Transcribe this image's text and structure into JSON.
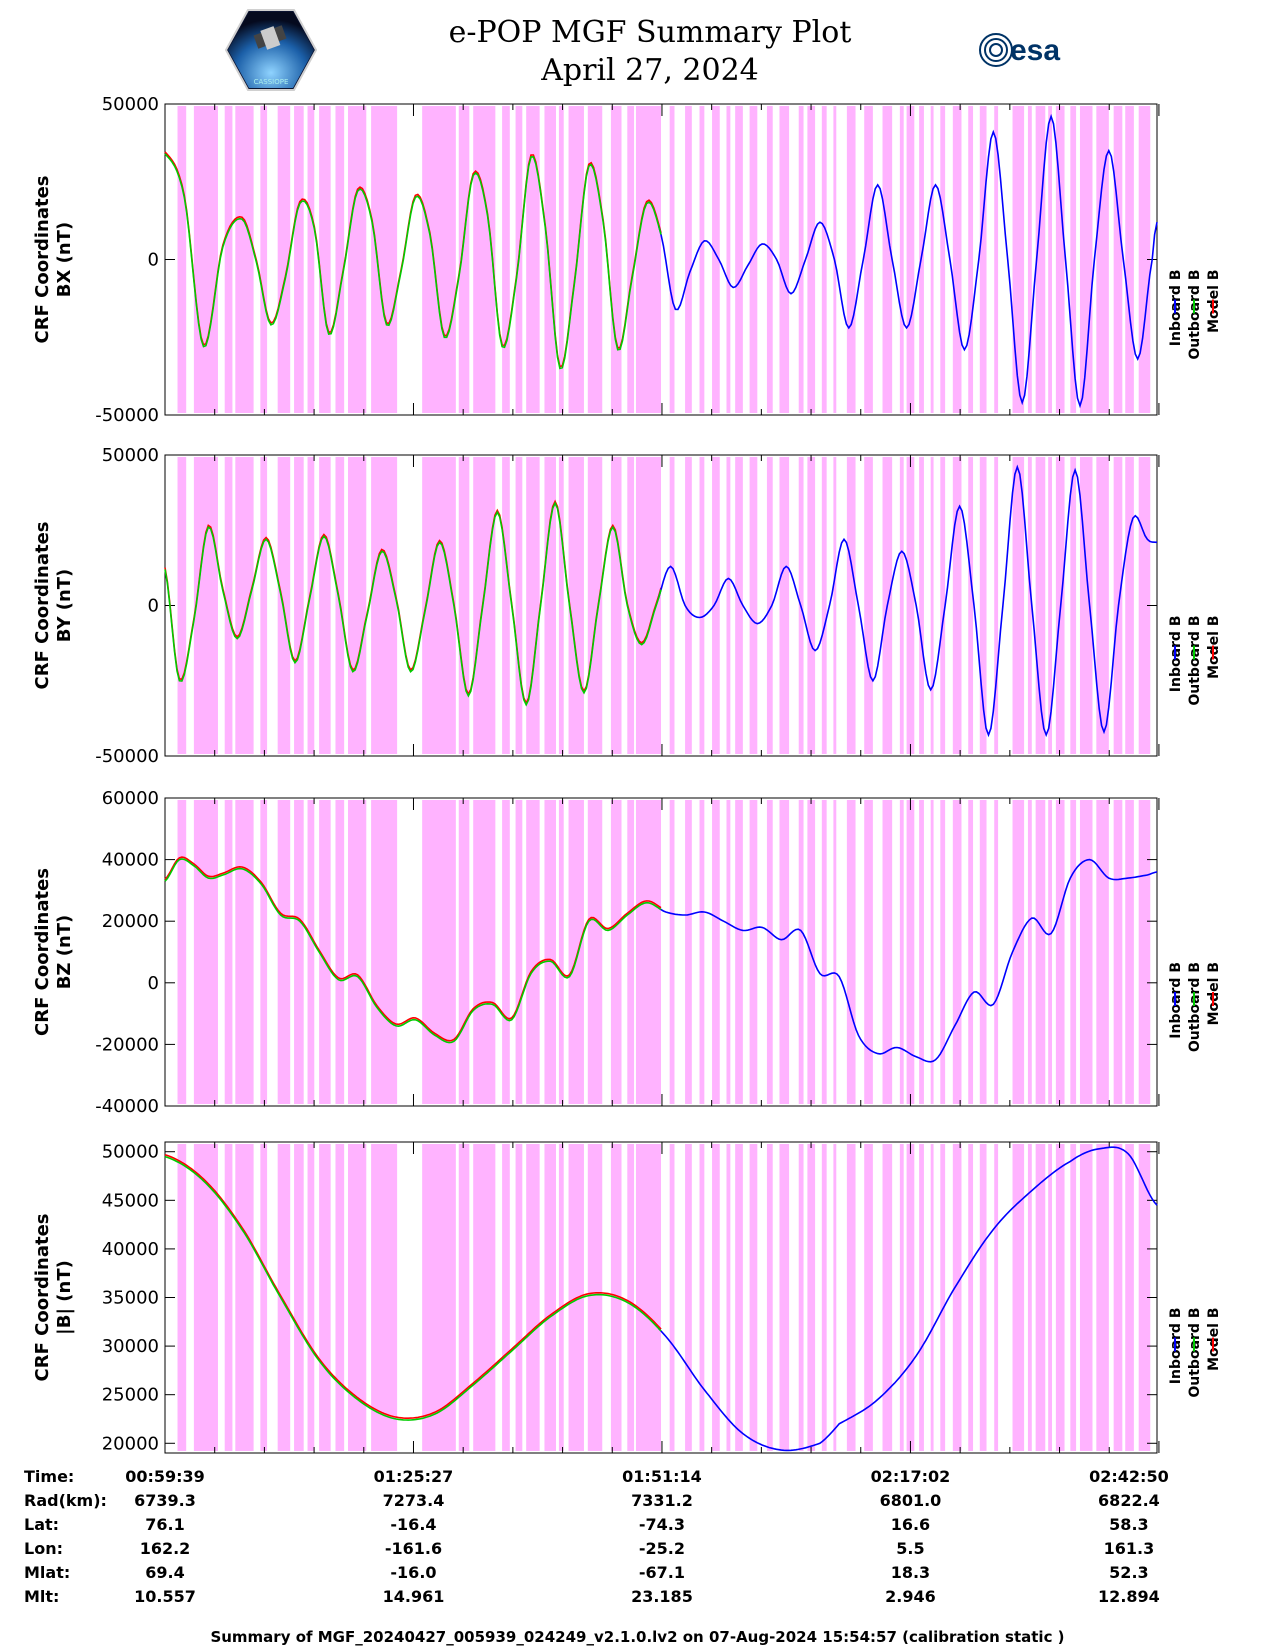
{
  "title": {
    "line1": "e-POP MGF Summary Plot",
    "line2": "April 27, 2024"
  },
  "logos": {
    "left_icon": "cassiope-satellite-logo",
    "left_text": "CASSIOPE",
    "right_icon": "esa-logo",
    "right_text": "esa"
  },
  "colors": {
    "inboard": "#0000ff",
    "outboard": "#00cc00",
    "model": "#ff0000",
    "shade": "#ffb3ff"
  },
  "legend": [
    "Inboard B",
    "Outboard B",
    "Model B"
  ],
  "chart_data": [
    {
      "type": "line",
      "ylabel_line1": "CRF Coordinates",
      "ylabel_line2": "BX (nT)",
      "ylim": [
        -50000,
        50000
      ],
      "yticks": [
        "50000",
        "0",
        "-50000"
      ],
      "ytick_values": [
        50000,
        0,
        -50000
      ],
      "t": [
        0,
        2,
        4,
        6,
        8,
        9.5,
        11,
        12.5,
        14,
        15.5,
        17,
        18.5,
        20,
        21.5,
        23,
        24.5,
        26,
        27.5,
        29,
        30.5,
        32,
        33.5,
        35,
        36.5,
        38,
        39.5,
        41,
        42.5,
        44,
        45.5,
        47,
        48.5,
        50,
        51.5,
        53,
        54.5,
        56,
        57.5,
        59,
        60.5,
        62,
        63.5,
        65,
        66.5,
        68,
        69.5,
        71,
        72.5,
        74,
        75.5,
        77,
        78.5,
        80,
        81.5,
        83,
        84.5,
        86,
        87.5,
        89,
        90.5,
        92,
        93.5,
        95,
        96.5,
        98,
        99.5,
        101,
        102.5,
        103
      ],
      "y": [
        34000,
        20000,
        -28000,
        4000,
        13000,
        -1000,
        -21000,
        -6000,
        18000,
        10000,
        -24000,
        -4000,
        22000,
        12000,
        -21000,
        -4000,
        20000,
        8000,
        -25000,
        -6000,
        27000,
        14000,
        -28000,
        -6000,
        33000,
        10000,
        -35000,
        -8000,
        30000,
        12000,
        -29000,
        -6000,
        18000,
        8000,
        -16000,
        -4000,
        6000,
        0,
        -9000,
        -2000,
        5000,
        0,
        -11000,
        0,
        12000,
        0,
        -22000,
        0,
        24000,
        0,
        -22000,
        0,
        24000,
        0,
        -29000,
        0,
        41000,
        0,
        -46000,
        0,
        46000,
        0,
        -47000,
        0,
        35000,
        0,
        -32000,
        0,
        12000
      ],
      "model_offset_note": "Model B closely overlays measured data"
    },
    {
      "type": "line",
      "ylabel_line1": "CRF Coordinates",
      "ylabel_line2": "BY (nT)",
      "ylim": [
        -50000,
        50000
      ],
      "yticks": [
        "50000",
        "0",
        "-50000"
      ],
      "ytick_values": [
        50000,
        0,
        -50000
      ],
      "t": [
        0,
        1.5,
        3,
        4.5,
        6,
        7.5,
        9,
        10.5,
        12,
        13.5,
        15,
        16.5,
        18,
        19.5,
        21,
        22.5,
        24,
        25.5,
        27,
        28.5,
        30,
        31.5,
        33,
        34.5,
        36,
        37.5,
        39,
        40.5,
        42,
        43.5,
        45,
        46.5,
        48,
        49.5,
        51,
        52.5,
        54,
        55.5,
        57,
        58.5,
        60,
        61.5,
        63,
        64.5,
        66,
        67.5,
        69,
        70.5,
        72,
        73.5,
        75,
        76.5,
        78,
        79.5,
        81,
        82.5,
        84,
        85.5,
        87,
        88.5,
        90,
        91.5,
        93,
        94.5,
        96,
        97.5,
        99,
        100.5,
        102,
        103
      ],
      "y": [
        12000,
        -25000,
        -5000,
        26000,
        5000,
        -11000,
        5000,
        22000,
        4000,
        -19000,
        2000,
        23000,
        3000,
        -22000,
        -3000,
        18000,
        2000,
        -22000,
        -2000,
        21000,
        0,
        -30000,
        0,
        31000,
        0,
        -33000,
        0,
        34000,
        0,
        -29000,
        0,
        26000,
        0,
        -13000,
        0,
        13000,
        0,
        -4000,
        0,
        9000,
        0,
        -6000,
        0,
        13000,
        0,
        -15000,
        0,
        22000,
        0,
        -25000,
        0,
        18000,
        0,
        -28000,
        0,
        33000,
        0,
        -43000,
        0,
        46000,
        0,
        -43000,
        0,
        45000,
        0,
        -42000,
        0,
        29000,
        22000,
        21000
      ],
      "model_offset_note": "Model B closely overlays measured data"
    },
    {
      "type": "line",
      "ylabel_line1": "CRF Coordinates",
      "ylabel_line2": "BZ (nT)",
      "ylim": [
        -40000,
        60000
      ],
      "yticks": [
        "60000",
        "40000",
        "20000",
        "0",
        "-20000",
        "-40000"
      ],
      "ytick_values": [
        60000,
        40000,
        20000,
        0,
        -20000,
        -40000
      ],
      "t": [
        0,
        1.5,
        3,
        4.5,
        6,
        8,
        10,
        12,
        14,
        16,
        18,
        20,
        22,
        24,
        26,
        28,
        30,
        32,
        34,
        36,
        38,
        40,
        42,
        44,
        46,
        48,
        50,
        52,
        54,
        56,
        58,
        60,
        62,
        64,
        66,
        68,
        70,
        72,
        74,
        76,
        78,
        80,
        82,
        84,
        86,
        88,
        90,
        92,
        94,
        96,
        98,
        100,
        102,
        103
      ],
      "y": [
        33000,
        40000,
        38000,
        34000,
        35000,
        37000,
        32000,
        22000,
        20000,
        10000,
        1000,
        2000,
        -8000,
        -14000,
        -12000,
        -17000,
        -19000,
        -9000,
        -7000,
        -12000,
        3000,
        7000,
        2000,
        20000,
        17000,
        22000,
        26000,
        23000,
        22000,
        23000,
        20000,
        17000,
        18000,
        14000,
        17000,
        3000,
        2000,
        -17000,
        -23000,
        -21000,
        -24000,
        -25000,
        -14000,
        -3000,
        -7000,
        10000,
        21000,
        16000,
        34000,
        40000,
        34000,
        34000,
        35000,
        36000
      ],
      "model_offset_note": "Model B closely overlays measured data"
    },
    {
      "type": "line",
      "ylabel_line1": "CRF Coordinates",
      "ylabel_line2": "|B| (nT)",
      "ylim": [
        19000,
        51000
      ],
      "yticks": [
        "50000",
        "45000",
        "40000",
        "35000",
        "30000",
        "25000",
        "20000"
      ],
      "ytick_values": [
        50000,
        45000,
        40000,
        35000,
        30000,
        25000,
        20000
      ],
      "t": [
        0,
        4,
        8,
        12,
        16,
        20,
        24,
        28,
        32,
        36,
        40,
        44,
        48,
        52,
        56,
        60,
        64,
        68,
        70,
        74,
        78,
        82,
        86,
        90,
        94,
        97,
        100,
        103
      ],
      "y": [
        49500,
        47000,
        42000,
        35000,
        28500,
        24500,
        22500,
        23000,
        26000,
        29500,
        33000,
        35200,
        34500,
        31000,
        25500,
        21000,
        19300,
        20000,
        22000,
        24500,
        29000,
        36000,
        42000,
        46000,
        49000,
        50300,
        49800,
        44500
      ],
      "model_offset_note": "Model B closely overlays measured data"
    }
  ],
  "x_axis": {
    "t_range": [
      0,
      103
    ],
    "tick_minutes": [
      0,
      25.8,
      51.6,
      77.4,
      103.2
    ],
    "minor_ticks": 12
  },
  "outboard_end_t": 51.5,
  "shade_segments": [
    [
      1.3,
      2.2
    ],
    [
      3.0,
      5.5
    ],
    [
      6.2,
      7.0
    ],
    [
      7.3,
      9.2
    ],
    [
      9.9,
      10.6
    ],
    [
      11.7,
      13.0
    ],
    [
      13.4,
      14.4
    ],
    [
      14.8,
      15.5
    ],
    [
      16.0,
      17.2
    ],
    [
      17.7,
      18.6
    ],
    [
      19.0,
      20.9
    ],
    [
      21.4,
      24.1
    ],
    [
      26.7,
      30.2
    ],
    [
      30.5,
      31.6
    ],
    [
      32.0,
      34.3
    ],
    [
      35.0,
      35.8
    ],
    [
      36.4,
      37.1
    ],
    [
      37.5,
      38.9
    ],
    [
      39.4,
      40.6
    ],
    [
      40.9,
      41.4
    ],
    [
      41.9,
      43.5
    ],
    [
      43.9,
      45.4
    ],
    [
      46.3,
      47.4
    ],
    [
      48.0,
      48.7
    ],
    [
      48.9,
      51.5
    ],
    [
      52.4,
      52.9
    ],
    [
      54.0,
      54.7
    ],
    [
      55.5,
      56.0
    ],
    [
      56.8,
      57.6
    ],
    [
      58.3,
      58.7
    ],
    [
      59.2,
      60.0
    ],
    [
      60.7,
      61.5
    ],
    [
      62.5,
      63.1
    ],
    [
      63.8,
      64.8
    ],
    [
      65.8,
      66.3
    ],
    [
      66.7,
      67.5
    ],
    [
      68.2,
      68.7
    ],
    [
      69.4,
      69.7
    ],
    [
      70.8,
      71.7
    ],
    [
      72.6,
      73.5
    ],
    [
      74.5,
      75.5
    ],
    [
      76.3,
      76.7
    ],
    [
      77.0,
      77.8
    ],
    [
      78.3,
      78.8
    ],
    [
      79.5,
      79.8
    ],
    [
      80.5,
      81.0
    ],
    [
      81.8,
      82.7
    ],
    [
      83.4,
      83.9
    ],
    [
      84.6,
      85.3
    ],
    [
      86.1,
      86.5
    ],
    [
      88.0,
      89.2
    ],
    [
      89.6,
      90.0
    ],
    [
      90.4,
      91.4
    ],
    [
      91.7,
      92.1
    ],
    [
      92.5,
      93.4
    ],
    [
      94.0,
      94.6
    ],
    [
      95.0,
      96.3
    ],
    [
      96.7,
      98.0
    ],
    [
      98.5,
      99.4
    ],
    [
      99.7,
      100.6
    ],
    [
      101.1,
      102.3
    ]
  ],
  "info_table": {
    "labels": [
      "Time:",
      "Rad(km):",
      "Lat:",
      "Lon:",
      "Mlat:",
      "Mlt:"
    ],
    "columns": [
      [
        "00:59:39",
        "6739.3",
        "76.1",
        "162.2",
        "69.4",
        "10.557"
      ],
      [
        "01:25:27",
        "7273.4",
        "-16.4",
        "-161.6",
        "-16.0",
        "14.961"
      ],
      [
        "01:51:14",
        "7331.2",
        "-74.3",
        "-25.2",
        "-67.1",
        "23.185"
      ],
      [
        "02:17:02",
        "6801.0",
        "16.6",
        "5.5",
        "18.3",
        "2.946"
      ],
      [
        "02:42:50",
        "6822.4",
        "58.3",
        "161.3",
        "52.3",
        "12.894"
      ]
    ]
  },
  "footer": "Summary of MGF_20240427_005939_024249_v2.1.0.lv2 on 07-Aug-2024 15:54:57 (calibration static )"
}
